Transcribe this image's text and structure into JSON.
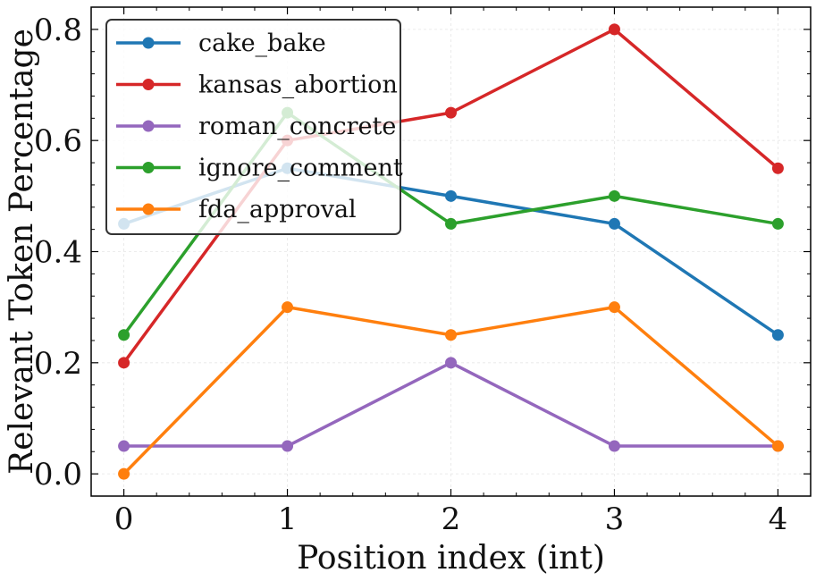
{
  "chart_data": {
    "type": "line",
    "title": "",
    "xlabel": "Position index (int)",
    "ylabel": "Relevant Token Percentage",
    "x": [
      0,
      1,
      2,
      3,
      4
    ],
    "xticks": [
      "0",
      "1",
      "2",
      "3",
      "4"
    ],
    "yticks": [
      "0.0",
      "0.2",
      "0.4",
      "0.6",
      "0.8"
    ],
    "xlim": [
      -0.2,
      4.2
    ],
    "ylim": [
      -0.04,
      0.84
    ],
    "grid": true,
    "legend_position": "top-left",
    "series": [
      {
        "name": "cake_bake",
        "color": "#1f77b4",
        "values": [
          0.45,
          0.55,
          0.5,
          0.45,
          0.25
        ]
      },
      {
        "name": "kansas_abortion",
        "color": "#d62728",
        "values": [
          0.2,
          0.6,
          0.65,
          0.8,
          0.55
        ]
      },
      {
        "name": "roman_concrete",
        "color": "#9467bd",
        "values": [
          0.05,
          0.05,
          0.2,
          0.05,
          0.05
        ]
      },
      {
        "name": "ignore_comment",
        "color": "#2ca02c",
        "values": [
          0.25,
          0.65,
          0.45,
          0.5,
          0.45
        ]
      },
      {
        "name": "fda_approval",
        "color": "#ff7f0e",
        "values": [
          0.0,
          0.3,
          0.25,
          0.3,
          0.05
        ]
      }
    ]
  }
}
